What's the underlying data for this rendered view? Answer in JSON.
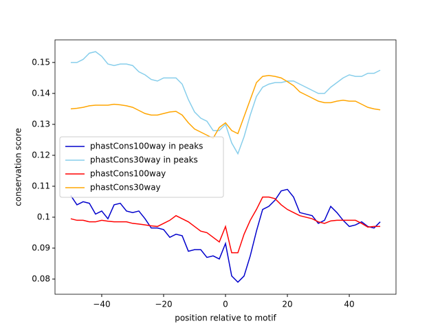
{
  "chart_data": {
    "type": "line",
    "xlabel": "position relative to motif",
    "ylabel": "conservation score",
    "x": [
      -50,
      -48,
      -46,
      -44,
      -42,
      -40,
      -38,
      -36,
      -34,
      -32,
      -30,
      -28,
      -26,
      -24,
      -22,
      -20,
      -18,
      -16,
      -14,
      -12,
      -10,
      -8,
      -6,
      -4,
      -2,
      0,
      2,
      4,
      6,
      8,
      10,
      12,
      14,
      16,
      18,
      20,
      22,
      24,
      26,
      28,
      30,
      32,
      34,
      36,
      38,
      40,
      42,
      44,
      46,
      48,
      50
    ],
    "series": [
      {
        "name": "phastCons100way in peaks",
        "color": "#0000cc",
        "values": [
          0.107,
          0.104,
          0.105,
          0.1045,
          0.101,
          0.102,
          0.0995,
          0.104,
          0.1045,
          0.102,
          0.1015,
          0.102,
          0.0995,
          0.0965,
          0.0965,
          0.096,
          0.0935,
          0.0945,
          0.094,
          0.089,
          0.0895,
          0.0895,
          0.087,
          0.0875,
          0.0865,
          0.0915,
          0.081,
          0.079,
          0.081,
          0.0875,
          0.0955,
          0.1025,
          0.1035,
          0.1055,
          0.1085,
          0.109,
          0.1065,
          0.1015,
          0.101,
          0.1005,
          0.098,
          0.099,
          0.1035,
          0.1015,
          0.099,
          0.097,
          0.0975,
          0.0985,
          0.097,
          0.0965,
          0.0985
        ]
      },
      {
        "name": "phastCons30way in peaks",
        "color": "#87ceeb",
        "values": [
          0.15,
          0.15,
          0.151,
          0.153,
          0.1535,
          0.152,
          0.1495,
          0.149,
          0.1495,
          0.1495,
          0.149,
          0.147,
          0.146,
          0.1445,
          0.144,
          0.145,
          0.145,
          0.145,
          0.143,
          0.138,
          0.134,
          0.132,
          0.131,
          0.128,
          0.128,
          0.13,
          0.124,
          0.1205,
          0.126,
          0.133,
          0.139,
          0.142,
          0.143,
          0.1435,
          0.1435,
          0.144,
          0.144,
          0.143,
          0.142,
          0.141,
          0.14,
          0.14,
          0.142,
          0.1435,
          0.145,
          0.146,
          0.1455,
          0.1455,
          0.1465,
          0.1465,
          0.1475
        ]
      },
      {
        "name": "phastCons100way",
        "color": "#ff0000",
        "values": [
          0.0995,
          0.099,
          0.099,
          0.0985,
          0.0985,
          0.099,
          0.0987,
          0.0985,
          0.0985,
          0.0985,
          0.098,
          0.0978,
          0.0975,
          0.0972,
          0.097,
          0.098,
          0.099,
          0.1005,
          0.0995,
          0.0985,
          0.097,
          0.0955,
          0.095,
          0.0935,
          0.092,
          0.097,
          0.0885,
          0.0885,
          0.0945,
          0.099,
          0.1025,
          0.1065,
          0.1065,
          0.106,
          0.104,
          0.1025,
          0.1015,
          0.1005,
          0.1,
          0.0995,
          0.0985,
          0.098,
          0.0988,
          0.099,
          0.099,
          0.099,
          0.099,
          0.098,
          0.0968,
          0.097,
          0.097
        ]
      },
      {
        "name": "phastCons30way",
        "color": "#ffa500",
        "values": [
          0.135,
          0.1352,
          0.1355,
          0.136,
          0.1362,
          0.1362,
          0.1362,
          0.1365,
          0.1363,
          0.136,
          0.1355,
          0.1345,
          0.1335,
          0.133,
          0.133,
          0.1335,
          0.134,
          0.1342,
          0.133,
          0.1305,
          0.1285,
          0.1275,
          0.1265,
          0.1255,
          0.129,
          0.1305,
          0.128,
          0.127,
          0.1325,
          0.138,
          0.1435,
          0.1455,
          0.1458,
          0.1455,
          0.145,
          0.1438,
          0.1425,
          0.1405,
          0.1395,
          0.1385,
          0.1375,
          0.137,
          0.137,
          0.1375,
          0.1378,
          0.1375,
          0.1375,
          0.1365,
          0.1355,
          0.135,
          0.1347
        ]
      }
    ],
    "xlim": [
      -55.1,
      55.1
    ],
    "xticks": [
      {
        "value": -40,
        "label": "−40"
      },
      {
        "value": -20,
        "label": "−20"
      },
      0,
      20,
      40
    ],
    "ylim": [
      0.0751,
      0.1573
    ],
    "yticks": [
      0.08,
      0.09,
      0.1,
      0.11,
      0.12,
      0.13,
      0.14,
      0.15
    ],
    "legend": "center left"
  }
}
